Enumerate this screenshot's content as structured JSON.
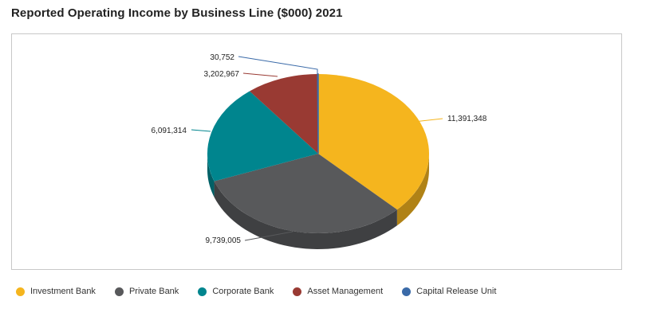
{
  "chart_data": {
    "type": "pie",
    "title": "Reported Operating Income by Business Line ($000) 2021",
    "labels": [
      "Investment Bank",
      "Private Bank",
      "Corporate Bank",
      "Asset Management",
      "Capital Release Unit"
    ],
    "values": [
      11391348,
      9739005,
      6091314,
      3202967,
      30752
    ],
    "value_labels": [
      "11,391,348",
      "9,739,005",
      "6,091,314",
      "3,202,967",
      "30,752"
    ],
    "colors": [
      "#F5B51E",
      "#58595B",
      "#00858E",
      "#993A33",
      "#3A6AA8"
    ],
    "legend_position": "bottom-left"
  }
}
